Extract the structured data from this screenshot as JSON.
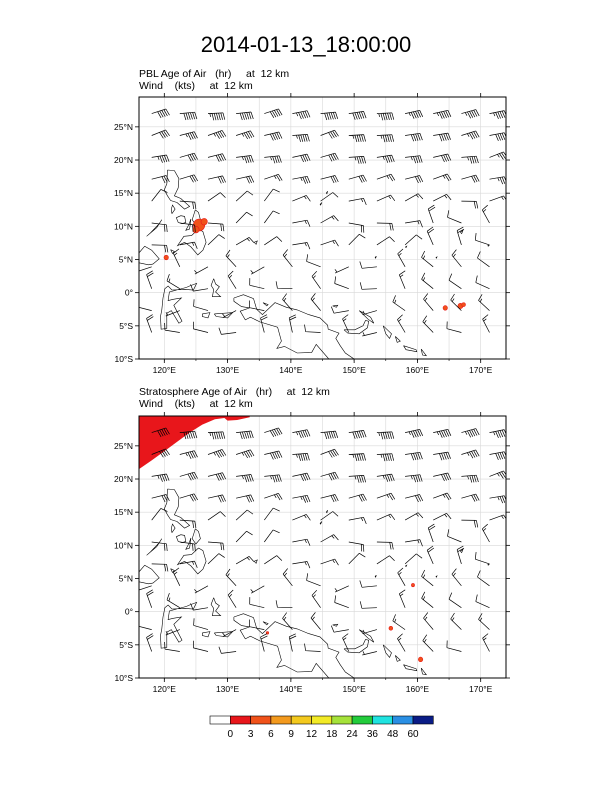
{
  "title": "2014-01-13_18:00:00",
  "panels": [
    {
      "label_line1": "PBL Age of Air   (hr)     at  12 km",
      "label_line2": "Wind    (kts)     at  12 km",
      "blobs": [
        {
          "lon": 125.5,
          "lat": 10.2,
          "r": 0.9
        },
        {
          "lon": 126.3,
          "lat": 10.7,
          "r": 0.5
        },
        {
          "lon": 125.0,
          "lat": 9.5,
          "r": 0.5
        },
        {
          "lon": 120.3,
          "lat": 5.3,
          "r": 0.35
        },
        {
          "lon": 164.4,
          "lat": -2.3,
          "r": 0.35
        },
        {
          "lon": 166.8,
          "lat": -2.0,
          "r": 0.4
        },
        {
          "lon": 167.3,
          "lat": -1.8,
          "r": 0.3
        }
      ]
    },
    {
      "label_line1": "Stratosphere Age of Air   (hr)     at  12 km",
      "label_line2": "Wind    (kts)     at  12 km",
      "blobs": [
        {
          "lon": 160.5,
          "lat": -7.2,
          "r": 0.35
        },
        {
          "lon": 155.8,
          "lat": -2.5,
          "r": 0.3
        },
        {
          "lon": 159.3,
          "lat": 4.0,
          "r": 0.25
        },
        {
          "lon": 136.3,
          "lat": -3.2,
          "r": 0.2
        }
      ],
      "red_region": [
        [
          116,
          21.5
        ],
        [
          118,
          22.8
        ],
        [
          120,
          24.2
        ],
        [
          122,
          25.6
        ],
        [
          124,
          27.0
        ],
        [
          126,
          28.2
        ],
        [
          128,
          29.0
        ],
        [
          129.5,
          29.2
        ],
        [
          130,
          28.8
        ],
        [
          131.5,
          28.9
        ],
        [
          133.5,
          29.3
        ],
        [
          133.5,
          29.5
        ],
        [
          116,
          29.5
        ]
      ]
    }
  ],
  "map": {
    "lon_range": [
      116,
      174
    ],
    "lat_range": [
      -10,
      29.5
    ],
    "lon_ticks": [
      120,
      130,
      140,
      150,
      160,
      170
    ],
    "lon_tick_labels": [
      "120°E",
      "130°E",
      "140°E",
      "150°E",
      "160°E",
      "170°E"
    ],
    "lat_ticks": [
      -10,
      -5,
      0,
      5,
      10,
      15,
      20,
      25
    ],
    "lat_tick_labels": [
      "10°S",
      "5°S",
      "0°",
      "5°N",
      "10°N",
      "15°N",
      "20°N",
      "25°N"
    ],
    "grid": true,
    "gridline_color": "#d8d8d8"
  },
  "colorbar": {
    "labels": [
      "0",
      "3",
      "6",
      "9",
      "12",
      "18",
      "24",
      "36",
      "48",
      "60"
    ],
    "colors": [
      "#ffffff",
      "#e8161b",
      "#f0521a",
      "#f39a1e",
      "#f3c91e",
      "#f2ea26",
      "#a5e23a",
      "#23cc3c",
      "#1fe3e0",
      "#2a8fe4",
      "#0a1c86"
    ]
  }
}
